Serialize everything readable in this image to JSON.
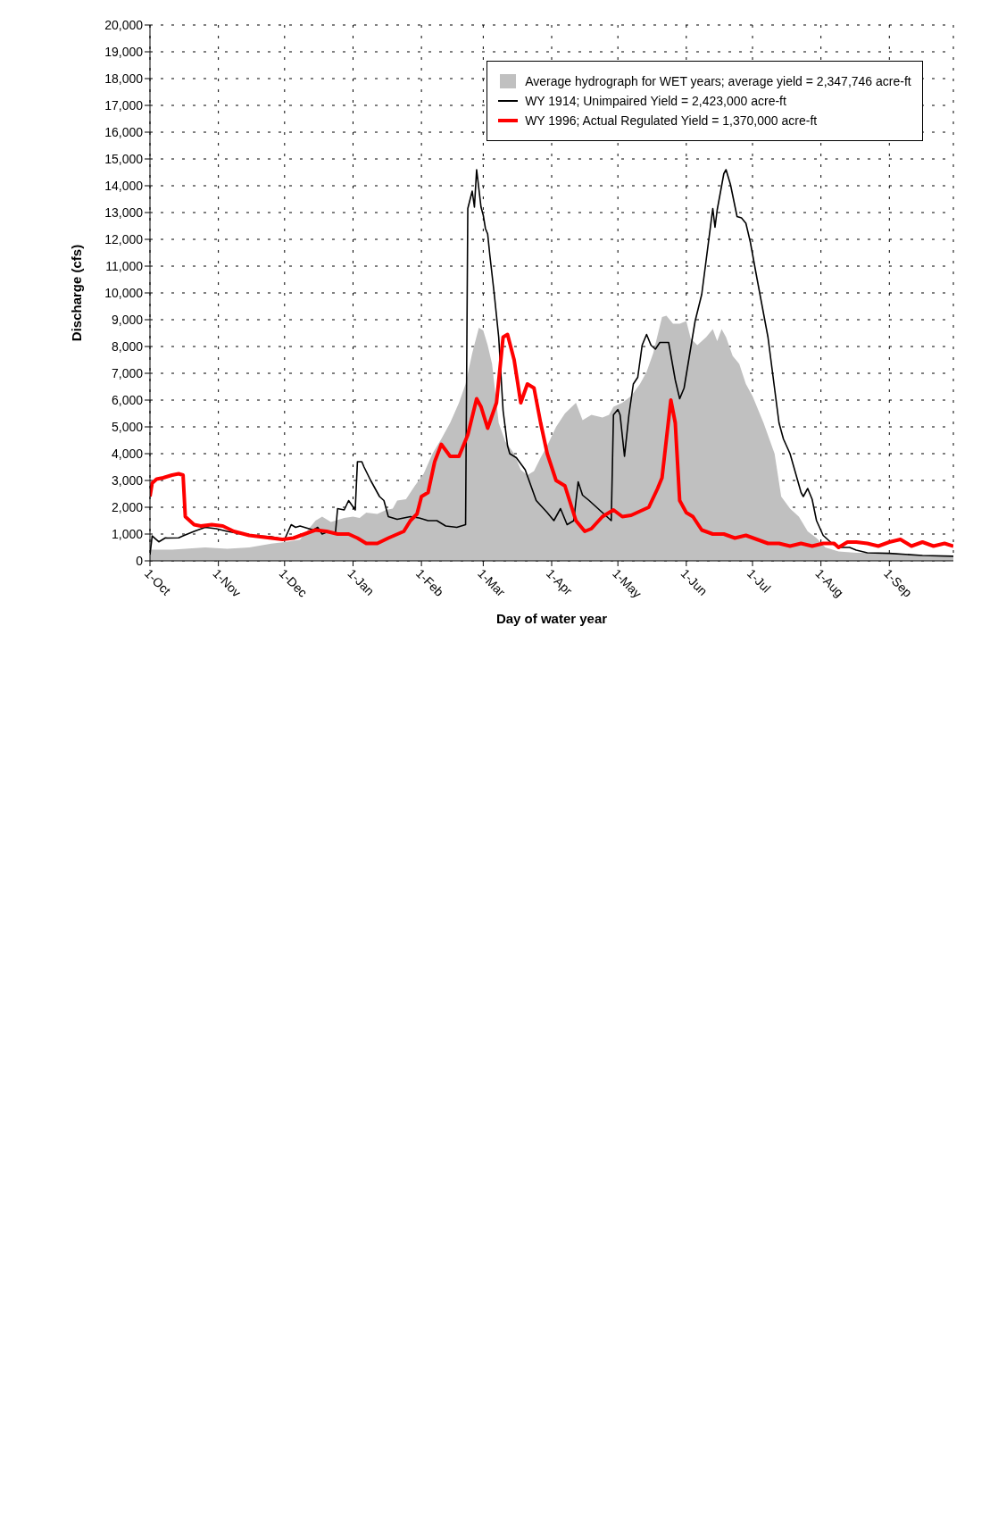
{
  "chart_data": {
    "type": "line",
    "xlabel": "Day of water year",
    "ylabel": "Discharge (cfs)",
    "xlim": [
      "1913-10-01",
      "1914-09-30"
    ],
    "xticks": [
      {
        "value": "1913-10-01",
        "label": "1-Oct"
      },
      {
        "value": "1913-11-01",
        "label": "1-Nov"
      },
      {
        "value": "1913-12-01",
        "label": "1-Dec"
      },
      {
        "value": "1914-01-01",
        "label": "1-Jan"
      },
      {
        "value": "1914-02-01",
        "label": "1-Feb"
      },
      {
        "value": "1914-03-01",
        "label": "1-Mar"
      },
      {
        "value": "1914-04-01",
        "label": "1-Apr"
      },
      {
        "value": "1914-05-01",
        "label": "1-May"
      },
      {
        "value": "1914-06-01",
        "label": "1-Jun"
      },
      {
        "value": "1914-07-01",
        "label": "1-Jul"
      },
      {
        "value": "1914-08-01",
        "label": "1-Aug"
      },
      {
        "value": "1914-09-01",
        "label": "1-Sep"
      }
    ],
    "ylim": [
      0,
      20000
    ],
    "yticks": [
      0,
      {
        "value": 1000,
        "label": "1,000"
      },
      {
        "value": 2000,
        "label": "2,000"
      },
      {
        "value": 3000,
        "label": "3,000"
      },
      {
        "value": 4000,
        "label": "4,000"
      },
      {
        "value": 5000,
        "label": "5,000"
      },
      {
        "value": 6000,
        "label": "6,000"
      },
      {
        "value": 7000,
        "label": "7,000"
      },
      {
        "value": 8000,
        "label": "8,000"
      },
      {
        "value": 9000,
        "label": "9,000"
      },
      {
        "value": 10000,
        "label": "10,000"
      },
      {
        "value": 11000,
        "label": "11,000"
      },
      {
        "value": 12000,
        "label": "12,000"
      },
      {
        "value": 13000,
        "label": "13,000"
      },
      {
        "value": 14000,
        "label": "14,000"
      },
      {
        "value": 15000,
        "label": "15,000"
      },
      {
        "value": 16000,
        "label": "16,000"
      },
      {
        "value": 17000,
        "label": "17,000"
      },
      {
        "value": 18000,
        "label": "18,000"
      },
      {
        "value": 19000,
        "label": "19,000"
      },
      {
        "value": 20000,
        "label": "20,000"
      }
    ],
    "grid": true,
    "legend": "top right",
    "line_style": "solid",
    "series": [
      {
        "name": "Average hydrograph for WET years; average yield = 2,347,746 acre-ft",
        "type": "area",
        "color": "#c0c0c0",
        "x": [
          "1913-10-01",
          "1913-10-11",
          "1913-10-26",
          "1913-11-05",
          "1913-11-15",
          "1913-11-25",
          "1913-12-01",
          "1913-12-08",
          "1913-12-15",
          "1913-12-18",
          "1913-12-22",
          "1913-12-28",
          "1914-01-01",
          "1914-01-04",
          "1914-01-07",
          "1914-01-12",
          "1914-01-16",
          "1914-01-19",
          "1914-01-21",
          "1914-01-25",
          "1914-01-29",
          "1914-02-02",
          "1914-02-06",
          "1914-02-10",
          "1914-02-14",
          "1914-02-18",
          "1914-02-21",
          "1914-02-24",
          "1914-02-27",
          "1914-03-01",
          "1914-03-03",
          "1914-03-05",
          "1914-03-08",
          "1914-03-11",
          "1914-03-15",
          "1914-03-18",
          "1914-03-21",
          "1914-03-24",
          "1914-03-27",
          "1914-03-30",
          "1914-04-03",
          "1914-04-07",
          "1914-04-12",
          "1914-04-15",
          "1914-04-19",
          "1914-04-24",
          "1914-04-27",
          "1914-04-29",
          "1914-05-03",
          "1914-05-07",
          "1914-05-11",
          "1914-05-14",
          "1914-05-17",
          "1914-05-21",
          "1914-05-23",
          "1914-05-26",
          "1914-05-29",
          "1914-06-01",
          "1914-06-03",
          "1914-06-06",
          "1914-06-10",
          "1914-06-13",
          "1914-06-15",
          "1914-06-17",
          "1914-06-19",
          "1914-06-22",
          "1914-06-25",
          "1914-06-28",
          "1914-07-01",
          "1914-07-06",
          "1914-07-11",
          "1914-07-14",
          "1914-07-18",
          "1914-07-22",
          "1914-07-26",
          "1914-07-30",
          "1914-08-03",
          "1914-08-09",
          "1914-08-17",
          "1914-09-01",
          "1914-09-16",
          "1914-09-30"
        ],
        "values": [
          420,
          420,
          500,
          450,
          500,
          640,
          700,
          790,
          1500,
          1650,
          1450,
          1600,
          1650,
          1600,
          1800,
          1750,
          1900,
          1950,
          2250,
          2300,
          2800,
          3250,
          4000,
          4550,
          5150,
          5900,
          6600,
          7750,
          8700,
          8600,
          8050,
          7350,
          5150,
          4450,
          4000,
          3400,
          3200,
          3350,
          3850,
          4300,
          5000,
          5500,
          5900,
          5250,
          5450,
          5350,
          5450,
          5750,
          5900,
          6150,
          6600,
          7050,
          7750,
          9100,
          9150,
          8850,
          8850,
          8950,
          8300,
          8050,
          8350,
          8650,
          8200,
          8650,
          8350,
          7650,
          7350,
          6600,
          6150,
          5150,
          4000,
          2400,
          1950,
          1650,
          1100,
          850,
          500,
          350,
          300,
          300,
          200,
          150
        ]
      },
      {
        "name": "WY 1914; Unimpaired Yield = 2,423,000 acre-ft",
        "color": "#000000",
        "x": [
          "1913-10-01",
          "1913-10-02",
          "1913-10-05",
          "1913-10-08",
          "1913-10-09",
          "1913-10-14",
          "1913-10-16",
          "1913-10-21",
          "1913-10-26",
          "1913-10-31",
          "1913-11-05",
          "1913-11-15",
          "1913-11-25",
          "1913-12-01",
          "1913-12-04",
          "1913-12-06",
          "1913-12-08",
          "1913-12-10",
          "1913-12-14",
          "1913-12-16",
          "1913-12-18",
          "1913-12-21",
          "1913-12-24",
          "1913-12-25",
          "1913-12-28",
          "1913-12-30",
          "1914-01-02",
          "1914-01-03",
          "1914-01-05",
          "1914-01-06",
          "1914-01-09",
          "1914-01-13",
          "1914-01-15",
          "1914-01-17",
          "1914-01-19",
          "1914-01-21",
          "1914-01-27",
          "1914-01-31",
          "1914-02-04",
          "1914-02-08",
          "1914-02-12",
          "1914-02-17",
          "1914-02-21",
          "1914-02-22",
          "1914-02-24",
          "1914-02-25",
          "1914-02-26",
          "1914-02-28",
          "1914-03-01",
          "1914-03-02",
          "1914-03-03",
          "1914-03-04",
          "1914-03-06",
          "1914-03-08",
          "1914-03-10",
          "1914-03-12",
          "1914-03-13",
          "1914-03-16",
          "1914-03-20",
          "1914-03-25",
          "1914-03-30",
          "1914-04-02",
          "1914-04-05",
          "1914-04-08",
          "1914-04-11",
          "1914-04-13",
          "1914-04-15",
          "1914-04-18",
          "1914-04-24",
          "1914-04-28",
          "1914-04-29",
          "1914-05-01",
          "1914-05-02",
          "1914-05-04",
          "1914-05-06",
          "1914-05-08",
          "1914-05-10",
          "1914-05-12",
          "1914-05-14",
          "1914-05-16",
          "1914-05-18",
          "1914-05-20",
          "1914-05-24",
          "1914-05-27",
          "1914-05-29",
          "1914-05-31",
          "1914-06-05",
          "1914-06-08",
          "1914-06-13",
          "1914-06-14",
          "1914-06-15",
          "1914-06-18",
          "1914-06-19",
          "1914-06-21",
          "1914-06-24",
          "1914-06-26",
          "1914-06-28",
          "1914-06-30",
          "1914-07-03",
          "1914-07-08",
          "1914-07-13",
          "1914-07-15",
          "1914-07-18",
          "1914-07-23",
          "1914-07-24",
          "1914-07-26",
          "1914-07-28",
          "1914-07-30",
          "1914-08-02",
          "1914-08-06",
          "1914-08-09",
          "1914-08-14",
          "1914-08-17",
          "1914-08-22",
          "1914-09-01",
          "1914-09-16",
          "1914-09-30"
        ],
        "values": [
          230,
          930,
          710,
          860,
          850,
          860,
          930,
          1100,
          1250,
          1200,
          1100,
          950,
          900,
          800,
          1350,
          1250,
          1300,
          1250,
          1150,
          1250,
          1000,
          1100,
          1000,
          1950,
          1900,
          2250,
          1900,
          3700,
          3700,
          3500,
          3000,
          2400,
          2250,
          1650,
          1600,
          1550,
          1650,
          1600,
          1500,
          1500,
          1300,
          1250,
          1350,
          13150,
          13800,
          13200,
          14600,
          13200,
          12900,
          12400,
          12200,
          11400,
          9950,
          8350,
          5600,
          4300,
          4000,
          3850,
          3400,
          2250,
          1800,
          1500,
          1950,
          1350,
          1500,
          2950,
          2450,
          2250,
          1800,
          1500,
          5450,
          5650,
          5450,
          3900,
          5450,
          6600,
          6850,
          8050,
          8450,
          8050,
          7900,
          8150,
          8150,
          6750,
          6050,
          6450,
          8950,
          9950,
          13150,
          12450,
          13100,
          14450,
          14600,
          14050,
          12850,
          12800,
          12600,
          11900,
          10550,
          8350,
          5150,
          4550,
          4000,
          2550,
          2400,
          2700,
          2300,
          1500,
          950,
          650,
          500,
          500,
          400,
          300,
          280,
          200,
          170
        ]
      },
      {
        "name": "WY 1996; Actual Regulated Yield = 1,370,000 acre-ft",
        "color": "#ff0000",
        "x": [
          "1913-10-01",
          "1913-10-02",
          "1913-10-04",
          "1913-10-07",
          "1913-10-11",
          "1913-10-14",
          "1913-10-16",
          "1913-10-17",
          "1913-10-19",
          "1913-10-21",
          "1913-10-24",
          "1913-10-29",
          "1913-11-03",
          "1913-11-08",
          "1913-11-15",
          "1913-11-25",
          "1913-11-30",
          "1913-12-05",
          "1913-12-10",
          "1913-12-15",
          "1913-12-20",
          "1913-12-25",
          "1913-12-30",
          "1914-01-03",
          "1914-01-07",
          "1914-01-12",
          "1914-01-17",
          "1914-01-24",
          "1914-01-27",
          "1914-01-30",
          "1914-02-01",
          "1914-02-04",
          "1914-02-07",
          "1914-02-10",
          "1914-02-14",
          "1914-02-18",
          "1914-02-22",
          "1914-02-26",
          "1914-02-28",
          "1914-03-03",
          "1914-03-07",
          "1914-03-10",
          "1914-03-12",
          "1914-03-15",
          "1914-03-18",
          "1914-03-21",
          "1914-03-24",
          "1914-03-27",
          "1914-03-30",
          "1914-04-03",
          "1914-04-07",
          "1914-04-12",
          "1914-04-16",
          "1914-04-19",
          "1914-04-24",
          "1914-04-29",
          "1914-05-03",
          "1914-05-07",
          "1914-05-11",
          "1914-05-15",
          "1914-05-19",
          "1914-05-21",
          "1914-05-25",
          "1914-05-27",
          "1914-05-29",
          "1914-06-01",
          "1914-06-04",
          "1914-06-08",
          "1914-06-13",
          "1914-06-18",
          "1914-06-23",
          "1914-06-28",
          "1914-07-03",
          "1914-07-08",
          "1914-07-13",
          "1914-07-18",
          "1914-07-23",
          "1914-07-28",
          "1914-08-02",
          "1914-08-07",
          "1914-08-09",
          "1914-08-13",
          "1914-08-17",
          "1914-08-22",
          "1914-08-27",
          "1914-09-01",
          "1914-09-06",
          "1914-09-11",
          "1914-09-16",
          "1914-09-21",
          "1914-09-26",
          "1914-09-30"
        ],
        "values": [
          2400,
          2900,
          3050,
          3100,
          3200,
          3250,
          3200,
          1650,
          1500,
          1350,
          1300,
          1350,
          1300,
          1100,
          950,
          850,
          800,
          850,
          1000,
          1150,
          1100,
          1000,
          1000,
          850,
          650,
          650,
          850,
          1100,
          1500,
          1750,
          2400,
          2550,
          3700,
          4350,
          3900,
          3900,
          4700,
          6050,
          5750,
          4950,
          5900,
          8350,
          8450,
          7500,
          5900,
          6600,
          6450,
          5150,
          4000,
          3000,
          2800,
          1500,
          1100,
          1200,
          1650,
          1900,
          1650,
          1700,
          1850,
          2000,
          2700,
          3100,
          6000,
          5150,
          2250,
          1800,
          1650,
          1150,
          1000,
          1000,
          850,
          950,
          800,
          650,
          650,
          550,
          650,
          550,
          650,
          650,
          500,
          700,
          700,
          650,
          550,
          700,
          800,
          550,
          700,
          550,
          650,
          550
        ]
      }
    ]
  }
}
